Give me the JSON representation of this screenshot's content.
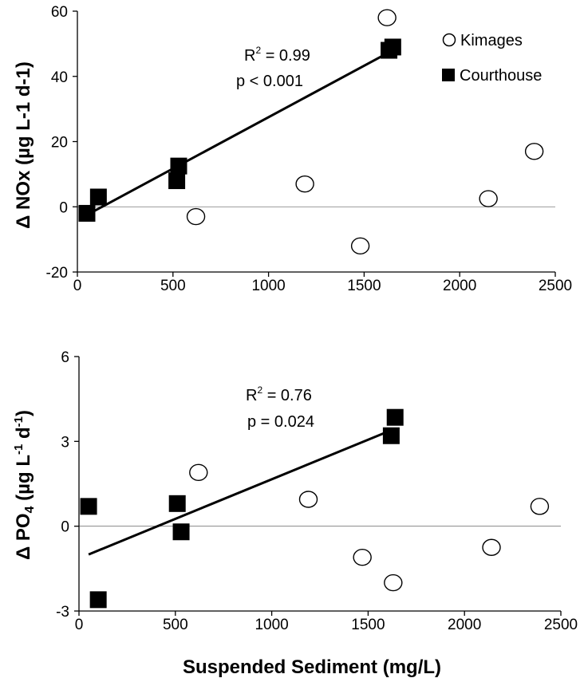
{
  "chart_data": [
    {
      "type": "scatter",
      "title": "",
      "xlabel": "",
      "ylabel": "Δ NOx (µg L-1 d-1)",
      "xlim": [
        0,
        2500
      ],
      "ylim": [
        -20,
        60
      ],
      "xticks": [
        "0",
        "500",
        "1000",
        "1500",
        "2000",
        "2500"
      ],
      "yticks": [
        "60",
        "40",
        "20",
        "0",
        "-20"
      ],
      "series": [
        {
          "name": "Kimages",
          "marker": "open-circle",
          "points": [
            [
              620,
              -3
            ],
            [
              1190,
              7
            ],
            [
              1480,
              -12
            ],
            [
              1620,
              58
            ],
            [
              2150,
              2.5
            ],
            [
              2390,
              17
            ]
          ]
        },
        {
          "name": "Courthouse",
          "marker": "filled-square",
          "points": [
            [
              50,
              -2
            ],
            [
              110,
              3
            ],
            [
              520,
              8
            ],
            [
              530,
              12.5
            ],
            [
              1630,
              48
            ],
            [
              1650,
              49
            ]
          ]
        }
      ],
      "fit": {
        "series": "Courthouse",
        "x": [
          50,
          1650
        ],
        "y": [
          -2.5,
          48
        ]
      },
      "zero_line": true,
      "annotation": {
        "r2_prefix": "R",
        "r2_sup": "2",
        "r2_value": " = 0.99",
        "p": "p < 0.001"
      },
      "legend": {
        "position": "top-right",
        "items": [
          "Kimages",
          "Courthouse"
        ]
      }
    },
    {
      "type": "scatter",
      "title": "",
      "xlabel": "Suspended Sediment (mg/L)",
      "ylabel": "Δ PO4 (µg L-1 d-1)",
      "xlim": [
        0,
        2500
      ],
      "ylim": [
        -3,
        6
      ],
      "xticks": [
        "0",
        "500",
        "1000",
        "1500",
        "2000",
        "2500"
      ],
      "yticks": [
        "6",
        "3",
        "0",
        "-3"
      ],
      "series": [
        {
          "name": "Kimages",
          "marker": "open-circle",
          "points": [
            [
              620,
              1.9
            ],
            [
              1190,
              0.95
            ],
            [
              1470,
              -1.1
            ],
            [
              1630,
              -2.0
            ],
            [
              2140,
              -0.75
            ],
            [
              2390,
              0.7
            ]
          ]
        },
        {
          "name": "Courthouse",
          "marker": "filled-square",
          "points": [
            [
              50,
              0.7
            ],
            [
              100,
              -2.6
            ],
            [
              510,
              0.8
            ],
            [
              530,
              -0.2
            ],
            [
              1620,
              3.2
            ],
            [
              1640,
              3.85
            ]
          ]
        }
      ],
      "fit": {
        "series": "Courthouse",
        "x": [
          50,
          1640
        ],
        "y": [
          -1.0,
          3.45
        ]
      },
      "zero_line": true,
      "annotation": {
        "r2_prefix": "R",
        "r2_sup": "2",
        "r2_value": " = 0.76",
        "p": "p = 0.024"
      }
    }
  ]
}
